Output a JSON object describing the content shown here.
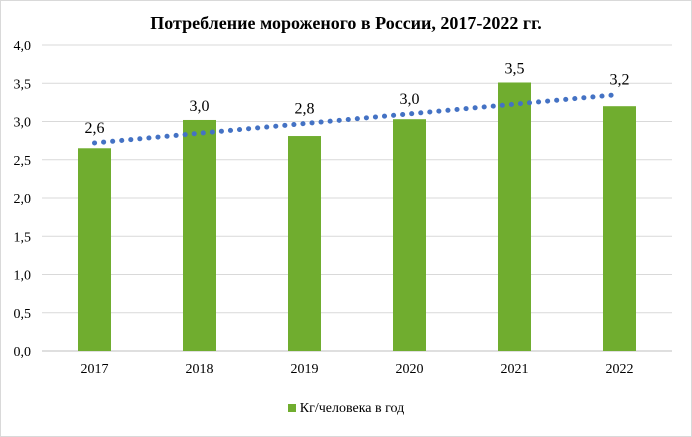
{
  "chart_data": {
    "type": "bar",
    "title": "Потребление мороженого в России, 2017-2022 гг.",
    "categories": [
      "2017",
      "2018",
      "2019",
      "2020",
      "2021",
      "2022"
    ],
    "series": [
      {
        "name": "Кг/человека в год",
        "values": [
          2.65,
          3.02,
          2.81,
          3.03,
          3.51,
          3.2
        ],
        "labels": [
          "2,6",
          "3,0",
          "2,8",
          "3,0",
          "3,5",
          "3,2"
        ],
        "color": "#70ad2f"
      }
    ],
    "trendline": {
      "type": "linear",
      "style": "dotted",
      "color": "#4472c4"
    },
    "xlabel": "",
    "ylabel": "",
    "ylim": [
      0,
      4
    ],
    "yticks": [
      "0,0",
      "0,5",
      "1,0",
      "1,5",
      "2,0",
      "2,5",
      "3,0",
      "3,5",
      "4,0"
    ],
    "grid": true,
    "legend_position": "bottom"
  }
}
